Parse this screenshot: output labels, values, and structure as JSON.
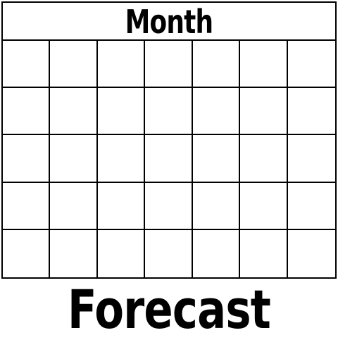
{
  "calendar": {
    "header_label": "Month",
    "rows": 5,
    "columns": 7
  },
  "caption": {
    "text": "Forecast"
  },
  "colors": {
    "line": "#000000",
    "background": "#ffffff"
  }
}
